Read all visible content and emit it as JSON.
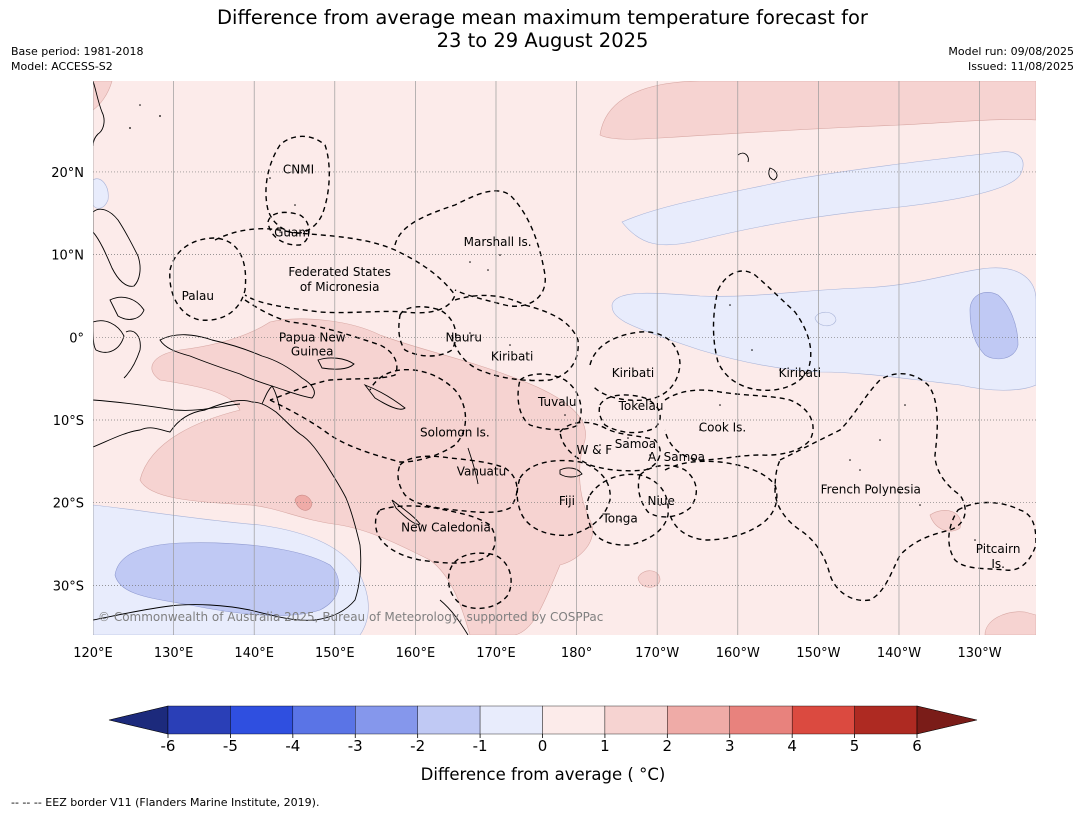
{
  "header": {
    "title_line1": "Difference from average mean maximum temperature forecast for",
    "title_line2": "23 to 29 August 2025",
    "base_period": "Base period: 1981-2018",
    "model": "Model: ACCESS-S2",
    "model_run": "Model run: 09/08/2025",
    "issued": "Issued: 11/08/2025"
  },
  "map": {
    "lon_range": [
      120,
      237
    ],
    "lat_range": [
      -36,
      31
    ],
    "lon_ticks": [
      {
        "lon": 120,
        "label": "120°E"
      },
      {
        "lon": 130,
        "label": "130°E"
      },
      {
        "lon": 140,
        "label": "140°E"
      },
      {
        "lon": 150,
        "label": "150°E"
      },
      {
        "lon": 160,
        "label": "160°E"
      },
      {
        "lon": 170,
        "label": "170°E"
      },
      {
        "lon": 180,
        "label": "180°"
      },
      {
        "lon": 190,
        "label": "170°W"
      },
      {
        "lon": 200,
        "label": "160°W"
      },
      {
        "lon": 210,
        "label": "150°W"
      },
      {
        "lon": 220,
        "label": "140°W"
      },
      {
        "lon": 230,
        "label": "130°W"
      }
    ],
    "lat_ticks": [
      {
        "lat": 20,
        "label": "20°N"
      },
      {
        "lat": 10,
        "label": "10°N"
      },
      {
        "lat": 0,
        "label": "0°"
      },
      {
        "lat": -10,
        "label": "10°S"
      },
      {
        "lat": -20,
        "label": "20°S"
      },
      {
        "lat": -30,
        "label": "30°S"
      }
    ],
    "regions": [
      {
        "name": "CNMI",
        "lon": 145.5,
        "lat": 20.3
      },
      {
        "name": "Guam",
        "lon": 144.7,
        "lat": 12.7
      },
      {
        "name": "Marshall Is.",
        "lon": 170.2,
        "lat": 11.5
      },
      {
        "name": "Federated States",
        "lon": 150.6,
        "lat": 7.9
      },
      {
        "name": "of Micronesia",
        "lon": 150.6,
        "lat": 6.1
      },
      {
        "name": "Palau",
        "lon": 133.0,
        "lat": 5.0
      },
      {
        "name": "Papua New",
        "lon": 147.2,
        "lat": 0.0
      },
      {
        "name": "Guinea",
        "lon": 147.2,
        "lat": -1.7
      },
      {
        "name": "Nauru",
        "lon": 166.0,
        "lat": 0.0
      },
      {
        "name": "Kiribati",
        "lon": 172.0,
        "lat": -2.3
      },
      {
        "name": "Kiribati",
        "lon": 187.0,
        "lat": -4.3
      },
      {
        "name": "Kiribati",
        "lon": 207.7,
        "lat": -4.3
      },
      {
        "name": "Tuvalu",
        "lon": 177.6,
        "lat": -7.8
      },
      {
        "name": "Tokelau",
        "lon": 188.0,
        "lat": -8.3
      },
      {
        "name": "Cook Is.",
        "lon": 198.1,
        "lat": -10.9
      },
      {
        "name": "Solomon Is.",
        "lon": 164.9,
        "lat": -11.5
      },
      {
        "name": "Samoa",
        "lon": 187.3,
        "lat": -12.9
      },
      {
        "name": "W & F",
        "lon": 182.2,
        "lat": -13.6
      },
      {
        "name": "A. Samoa",
        "lon": 192.4,
        "lat": -14.5
      },
      {
        "name": "Vanuatu",
        "lon": 168.2,
        "lat": -16.2
      },
      {
        "name": "Fiji",
        "lon": 178.8,
        "lat": -19.8
      },
      {
        "name": "Niue",
        "lon": 190.5,
        "lat": -19.8
      },
      {
        "name": "French Polynesia",
        "lon": 216.5,
        "lat": -18.4
      },
      {
        "name": "Tonga",
        "lon": 185.4,
        "lat": -21.9
      },
      {
        "name": "New Caledonia",
        "lon": 163.8,
        "lat": -23.0
      },
      {
        "name": "Pitcairn",
        "lon": 232.3,
        "lat": -25.6
      },
      {
        "name": "Is.",
        "lon": 232.3,
        "lat": -27.4
      }
    ],
    "copyright": "© Commonwealth of Australia 2025, Bureau of Meteorology, supported by COSPPac"
  },
  "colorbar": {
    "ticks": [
      "-6",
      "-5",
      "-4",
      "-3",
      "-2",
      "-1",
      "0",
      "1",
      "2",
      "3",
      "4",
      "5",
      "6"
    ],
    "colors": [
      "#1c2a7c",
      "#2a3fb7",
      "#2f4fe0",
      "#5a74e6",
      "#8597ec",
      "#c0c9f4",
      "#e8ecfc",
      "#fcebea",
      "#f6d3d1",
      "#efaba7",
      "#e8827d",
      "#db4a40",
      "#ae2a22",
      "#7a1c18"
    ],
    "title": "Difference from average ( °C)"
  },
  "footnote": "--  --  -- EEZ border V11 (Flanders Marine Institute, 2019)."
}
